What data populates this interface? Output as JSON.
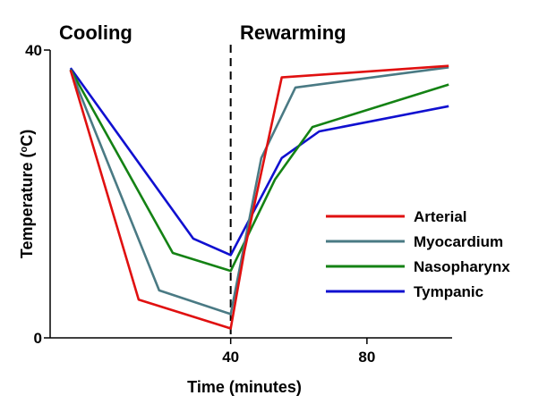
{
  "chart_data": {
    "type": "line",
    "title": "",
    "xlabel": "Time (minutes)",
    "ylabel_main": "Temperature (",
    "ylabel_sup": "o",
    "ylabel_unit": "C)",
    "xlim": [
      -13,
      105
    ],
    "ylim": [
      0,
      40
    ],
    "x_ticks": [
      40,
      80
    ],
    "y_ticks": [
      0,
      40
    ],
    "divider_x": 40,
    "annotations": [
      {
        "text": "Cooling",
        "x": -13
      },
      {
        "text": "Rewarming",
        "x": 41
      }
    ],
    "legend_position": "right-center",
    "grid": false,
    "series": [
      {
        "name": "Tympanic",
        "color": "#1010d0",
        "x": [
          -7,
          29,
          40,
          55,
          66,
          104
        ],
        "y": [
          37.5,
          13.8,
          11.5,
          25,
          28.7,
          32.2
        ]
      },
      {
        "name": "Nasopharynx",
        "color": "#148214",
        "x": [
          -7,
          23,
          40,
          53,
          64,
          104
        ],
        "y": [
          37.3,
          11.8,
          9.3,
          22,
          29.3,
          35.2
        ]
      },
      {
        "name": "Myocardium",
        "color": "#4a7a84",
        "x": [
          -7,
          19,
          40,
          49,
          59,
          104
        ],
        "y": [
          37.2,
          6.6,
          3.3,
          25,
          34.8,
          37.6
        ]
      },
      {
        "name": "Arterial",
        "color": "#e01010",
        "x": [
          -7,
          13,
          40,
          44,
          55,
          104
        ],
        "y": [
          37.2,
          5.3,
          1.3,
          12,
          36.2,
          37.8
        ]
      }
    ],
    "legend": [
      {
        "name": "Arterial",
        "color": "#e01010"
      },
      {
        "name": "Myocardium",
        "color": "#4a7a84"
      },
      {
        "name": "Nasopharynx",
        "color": "#148214"
      },
      {
        "name": "Tympanic",
        "color": "#1010d0"
      }
    ]
  }
}
